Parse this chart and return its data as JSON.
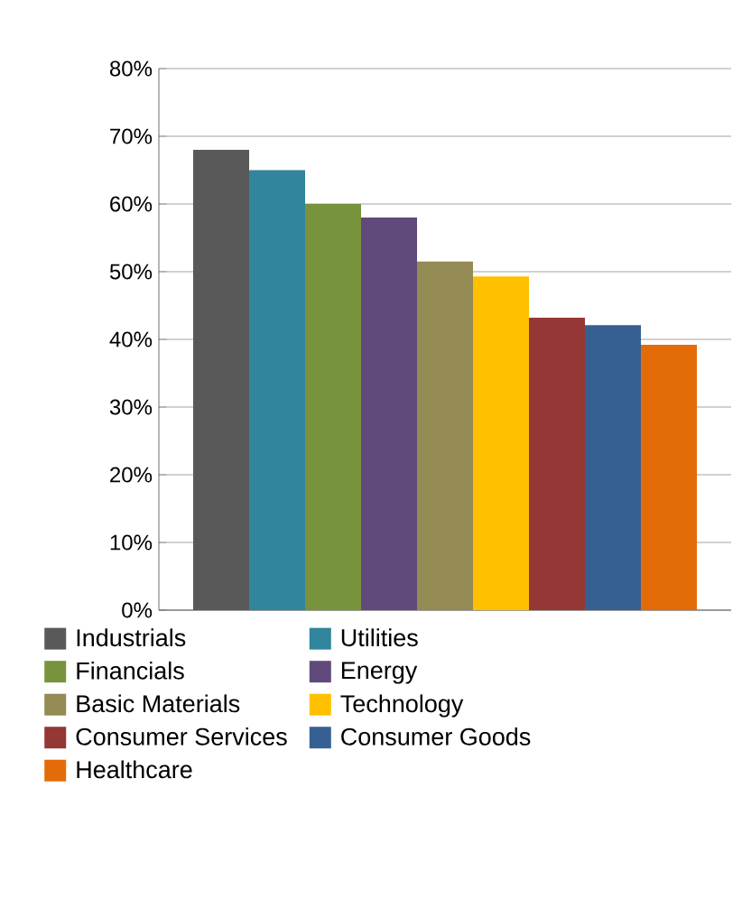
{
  "chart_data": {
    "type": "bar",
    "categories": [
      null
    ],
    "ylim": [
      0,
      80
    ],
    "yticks": [
      {
        "value": 0,
        "label": "0%"
      },
      {
        "value": 10,
        "label": "10%"
      },
      {
        "value": 20,
        "label": "20%"
      },
      {
        "value": 30,
        "label": "30%"
      },
      {
        "value": 40,
        "label": "40%"
      },
      {
        "value": 50,
        "label": "50%"
      },
      {
        "value": 60,
        "label": "60%"
      },
      {
        "value": 70,
        "label": "70%"
      },
      {
        "value": 80,
        "label": "80%"
      }
    ],
    "grid": "y",
    "legend": "bottom",
    "series": [
      {
        "name": "Industrials",
        "color": "#595959",
        "values": [
          68
        ]
      },
      {
        "name": "Utilities",
        "color": "#31859c",
        "values": [
          65
        ]
      },
      {
        "name": "Financials",
        "color": "#77933c",
        "values": [
          60
        ]
      },
      {
        "name": "Energy",
        "color": "#604a7b",
        "values": [
          58
        ]
      },
      {
        "name": "Basic Materials",
        "color": "#948a54",
        "values": [
          51.5
        ]
      },
      {
        "name": "Technology",
        "color": "#ffc000",
        "values": [
          49.3
        ]
      },
      {
        "name": "Consumer Services",
        "color": "#953735",
        "values": [
          43.2
        ]
      },
      {
        "name": "Consumer Goods",
        "color": "#366092",
        "values": [
          42.1
        ]
      },
      {
        "name": "Healthcare",
        "color": "#e36c09",
        "values": [
          39.2
        ]
      }
    ]
  }
}
